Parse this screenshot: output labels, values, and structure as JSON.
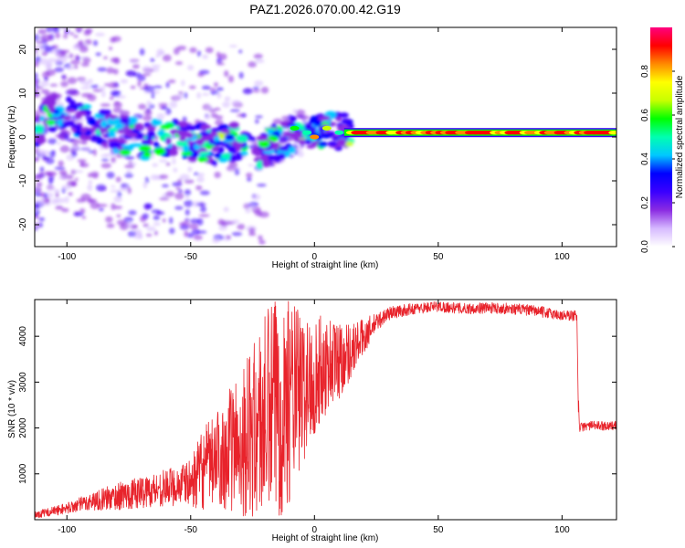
{
  "title": "PAZ1.2026.070.00.42.G19",
  "colors": {
    "snr_line": "#e8232b",
    "frame": "#000000",
    "background": "#ffffff",
    "colormap": [
      "#ffffff",
      "#d6b9ff",
      "#8a2be2",
      "#3a00ff",
      "#0000ff",
      "#00c8ff",
      "#00ffb0",
      "#00ff00",
      "#c8ff00",
      "#ffff00",
      "#ff8a00",
      "#ff0000",
      "#ff007f"
    ]
  },
  "chart_data": [
    {
      "type": "heatmap",
      "title": "",
      "xlabel": "Height of straight line (km)",
      "ylabel": "Frequency (Hz)",
      "xlim": [
        -113,
        122
      ],
      "ylim": [
        -25,
        25
      ],
      "xticks": [
        -100,
        -50,
        0,
        50,
        100
      ],
      "yticks": [
        -20,
        -10,
        0,
        10,
        20
      ],
      "colorbar": {
        "label": "Normalized spectral amplitude",
        "range": [
          0,
          1
        ],
        "ticks": [
          "0.0",
          "0.2",
          "0.4",
          "0.6",
          "0.8"
        ],
        "tick_values": [
          0.0,
          0.2,
          0.4,
          0.6,
          0.8
        ]
      },
      "dominant_ridge": [
        {
          "x": -110,
          "y": 6
        },
        {
          "x": -100,
          "y": 5
        },
        {
          "x": -90,
          "y": 3
        },
        {
          "x": -80,
          "y": 1
        },
        {
          "x": -70,
          "y": -1
        },
        {
          "x": -60,
          "y": 0
        },
        {
          "x": -50,
          "y": -1
        },
        {
          "x": -40,
          "y": -2
        },
        {
          "x": -30,
          "y": -1
        },
        {
          "x": -22,
          "y": -3
        },
        {
          "x": -15,
          "y": -1
        },
        {
          "x": -8,
          "y": 1
        },
        {
          "x": 0,
          "y": 0
        },
        {
          "x": 5,
          "y": 2
        },
        {
          "x": 10,
          "y": 1
        },
        {
          "x": 20,
          "y": 1
        },
        {
          "x": 122,
          "y": 1
        }
      ],
      "coherent_band": {
        "x_start": 15,
        "x_end": 122,
        "frequency": 1,
        "amplitude": 0.9
      }
    },
    {
      "type": "line",
      "title": "",
      "xlabel": "Height of straight line (km)",
      "ylabel": "SNR (10 * v/v)",
      "xlim": [
        -113,
        122
      ],
      "ylim": [
        0,
        4800
      ],
      "xticks": [
        -100,
        -50,
        0,
        50,
        100
      ],
      "yticks": [
        1000,
        2000,
        3000,
        4000
      ],
      "series": [
        {
          "name": "SNR",
          "x": [
            -113,
            -100,
            -90,
            -80,
            -70,
            -60,
            -50,
            -45,
            -40,
            -35,
            -30,
            -25,
            -20,
            -15,
            -10,
            -5,
            0,
            5,
            10,
            15,
            20,
            25,
            30,
            40,
            50,
            60,
            70,
            80,
            90,
            100,
            106,
            107,
            110,
            122
          ],
          "values": [
            100,
            250,
            400,
            500,
            600,
            700,
            800,
            1100,
            1300,
            1500,
            1700,
            1900,
            2200,
            2500,
            2700,
            2800,
            3100,
            3400,
            3500,
            3700,
            4000,
            4300,
            4500,
            4600,
            4650,
            4600,
            4620,
            4600,
            4550,
            4450,
            4450,
            2000,
            2050,
            2050
          ],
          "noise_amplitude": [
            80,
            120,
            200,
            300,
            350,
            400,
            500,
            900,
            1000,
            1300,
            1600,
            1900,
            2300,
            2600,
            2300,
            1700,
            1300,
            1100,
            900,
            600,
            400,
            200,
            150,
            120,
            120,
            120,
            120,
            120,
            120,
            120,
            120,
            100,
            100,
            100
          ]
        }
      ]
    }
  ]
}
